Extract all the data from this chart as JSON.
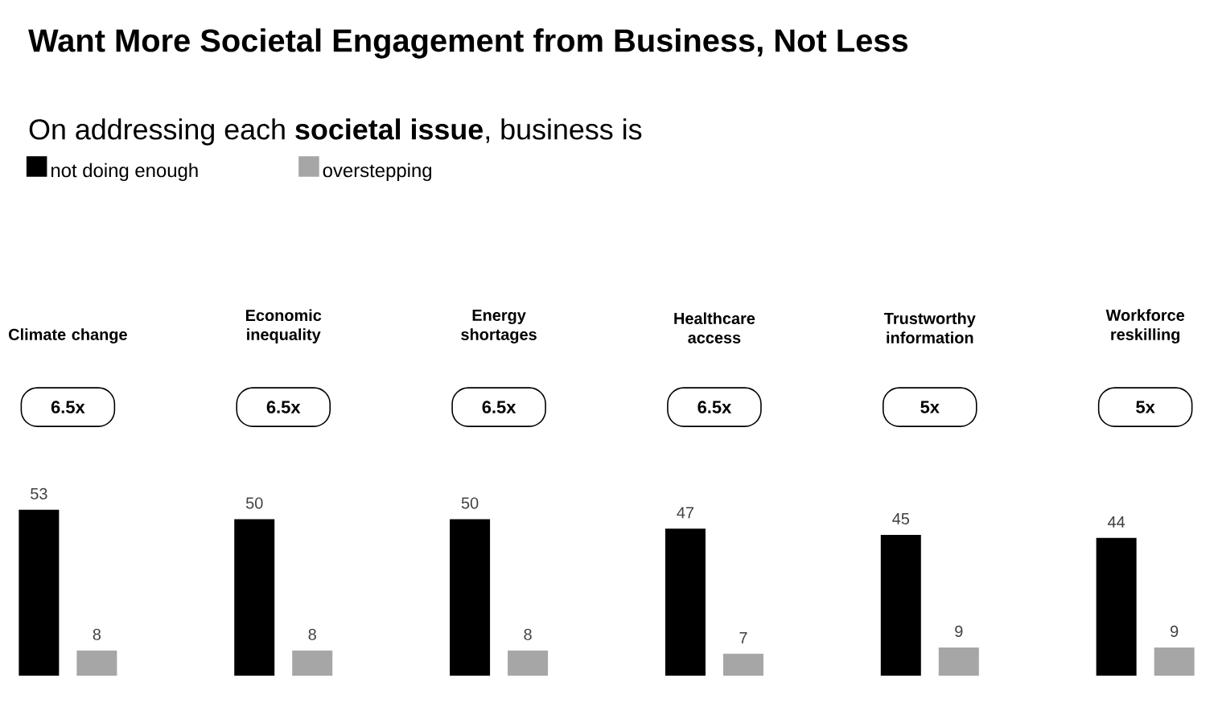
{
  "chart_data": {
    "type": "bar",
    "title": "Want More Societal Engagement from Business, Not Less",
    "subtitle": "On addressing each **societal issue**, business is",
    "categories": [
      "Climate change",
      "Economic inequality",
      "Energy shortages",
      "Healthcare access",
      "Trustworthy information",
      "Workforce reskilling"
    ],
    "series": [
      {
        "name": "not doing enough",
        "color": "#000000",
        "values": [
          53,
          50,
          50,
          47,
          45,
          44
        ]
      },
      {
        "name": "overstepping",
        "color": "#a6a6a6",
        "values": [
          8,
          8,
          8,
          7,
          9,
          9
        ]
      }
    ],
    "data_labels": true,
    "legend": "top left",
    "annotations": [
      "6.5x",
      "6.5x",
      "6.5x",
      "6.5x",
      "5x",
      "5x"
    ]
  }
}
